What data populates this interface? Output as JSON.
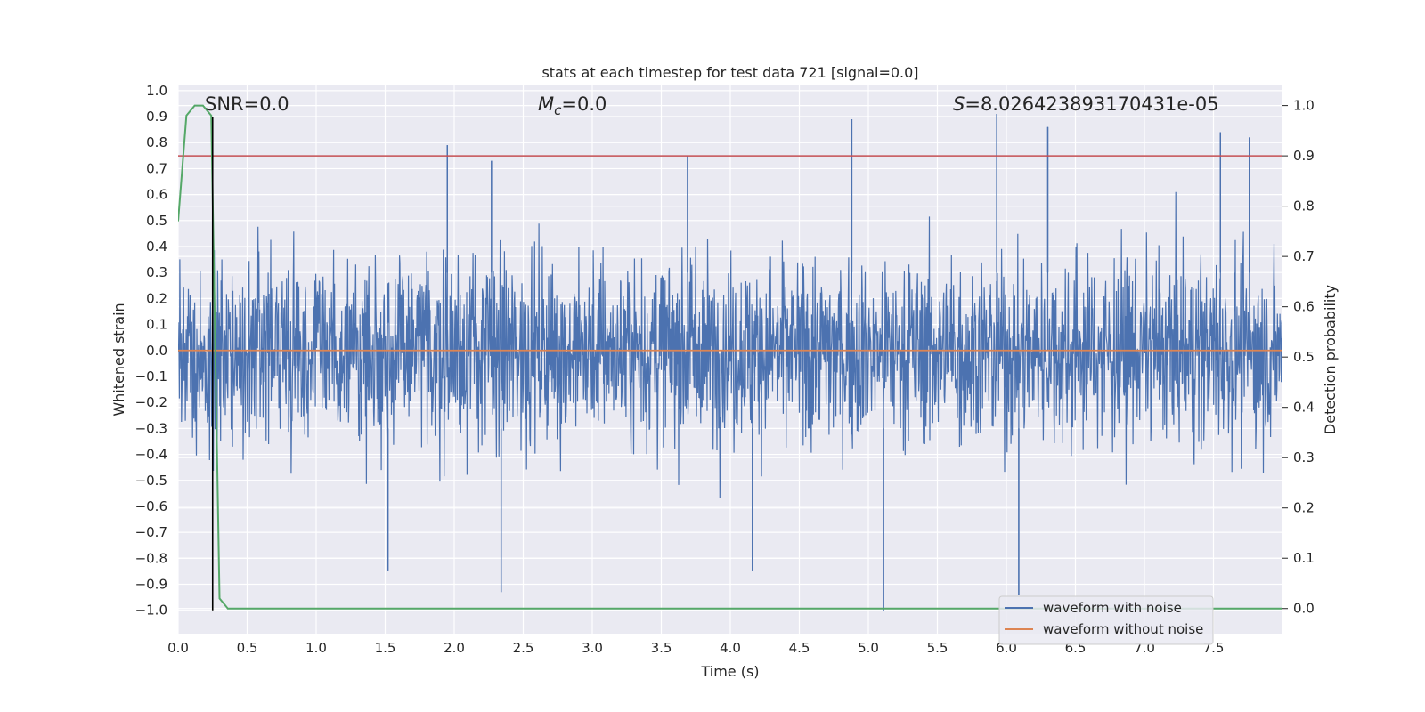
{
  "chart_data": {
    "type": "line",
    "title": "stats at each timestep for test data 721 [signal=0.0]",
    "xlabel": "Time (s)",
    "ylabel": "Whitened strain",
    "y2label": "Detection probability",
    "xlim": [
      0.0,
      8.0
    ],
    "ylim": [
      -1.09,
      1.02
    ],
    "y2lim": [
      -0.05,
      1.04
    ],
    "x_ticks": [
      0.0,
      0.5,
      1.0,
      1.5,
      2.0,
      2.5,
      3.0,
      3.5,
      4.0,
      4.5,
      5.0,
      5.5,
      6.0,
      6.5,
      7.0,
      7.5
    ],
    "x_tick_labels": [
      "0.0",
      "0.5",
      "1.0",
      "1.5",
      "2.0",
      "2.5",
      "3.0",
      "3.5",
      "4.0",
      "4.5",
      "5.0",
      "5.5",
      "6.0",
      "6.5",
      "7.0",
      "7.5"
    ],
    "y_ticks": [
      1.0,
      0.9,
      0.8,
      0.7,
      0.6,
      0.5,
      0.4,
      0.3,
      0.2,
      0.1,
      0.0,
      -0.1,
      -0.2,
      -0.3,
      -0.4,
      -0.5,
      -0.6,
      -0.7,
      -0.8,
      -0.9,
      -1.0
    ],
    "y_tick_labels": [
      "1.0",
      "0.9",
      "0.8",
      "0.7",
      "0.6",
      "0.5",
      "0.4",
      "0.3",
      "0.2",
      "0.1",
      "0.0",
      "−0.1",
      "−0.2",
      "−0.3",
      "−0.4",
      "−0.5",
      "−0.6",
      "−0.7",
      "−0.8",
      "−0.9",
      "−1.0"
    ],
    "y2_ticks": [
      1.0,
      0.9,
      0.8,
      0.7,
      0.6,
      0.5,
      0.4,
      0.3,
      0.2,
      0.1,
      0.0
    ],
    "y2_tick_labels": [
      "1.0",
      "0.9",
      "0.8",
      "0.7",
      "0.6",
      "0.5",
      "0.4",
      "0.3",
      "0.2",
      "0.1",
      "0.0"
    ],
    "grid": true,
    "annotations": {
      "snr": "SNR=0.0",
      "mc_symbol": "M",
      "mc_subscript": "c",
      "mc_value": "=0.0",
      "s_symbol": "S",
      "s_value": "=8.026423893170431e-05"
    },
    "legend": {
      "placement": "lower-right",
      "entries": [
        "waveform with noise",
        "waveform without noise"
      ]
    },
    "series": [
      {
        "name": "waveform with noise",
        "axis": "left",
        "color": "#4c72b0",
        "style": "dense noise",
        "notable_peaks": [
          {
            "x": 1.95,
            "y": 0.79
          },
          {
            "x": 2.27,
            "y": 0.73
          },
          {
            "x": 3.69,
            "y": 0.75
          },
          {
            "x": 4.88,
            "y": 0.89
          },
          {
            "x": 5.93,
            "y": 0.91
          },
          {
            "x": 6.3,
            "y": 0.86
          },
          {
            "x": 7.55,
            "y": 0.84
          },
          {
            "x": 7.76,
            "y": 0.82
          }
        ],
        "notable_troughs": [
          {
            "x": 2.34,
            "y": -0.93
          },
          {
            "x": 5.11,
            "y": -1.0
          },
          {
            "x": 6.09,
            "y": -0.94
          },
          {
            "x": 1.52,
            "y": -0.85
          },
          {
            "x": 4.16,
            "y": -0.85
          }
        ]
      },
      {
        "name": "waveform without noise",
        "axis": "left",
        "color": "#dd8452",
        "x": [
          0.0,
          8.0
        ],
        "y": [
          0.0,
          0.0
        ]
      },
      {
        "name": "detection probability",
        "axis": "right",
        "color": "#55a868",
        "x": [
          0.0,
          0.06,
          0.12,
          0.18,
          0.24,
          0.3,
          0.36,
          8.0
        ],
        "y": [
          0.77,
          0.98,
          1.0,
          1.0,
          0.98,
          0.02,
          0.0,
          0.0
        ]
      }
    ],
    "threshold": {
      "axis": "right",
      "value": 0.9,
      "color": "#c44e52"
    },
    "event_marker": {
      "x": 0.25,
      "y_range": [
        -1.0,
        0.9
      ],
      "color": "#000000"
    }
  }
}
